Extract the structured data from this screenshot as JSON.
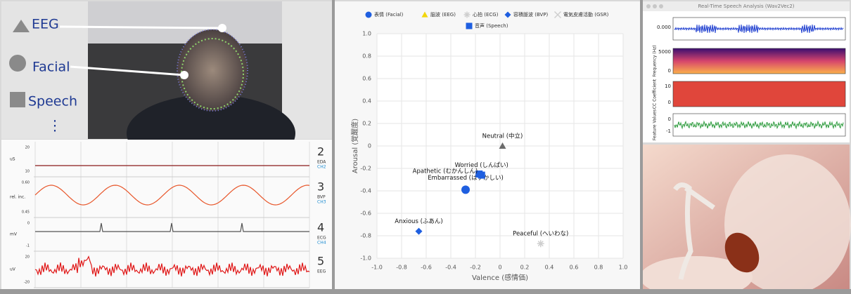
{
  "webcam": {
    "labels": [
      "EEG",
      "Facial",
      "Speech"
    ],
    "more": "⋮"
  },
  "physio": {
    "channels": [
      {
        "number": "2",
        "name": "EDA",
        "ch": "CH2",
        "unit": "uS",
        "ticks": [
          "20",
          "10"
        ]
      },
      {
        "number": "3",
        "name": "BVP",
        "ch": "CH3",
        "unit": "rel. inc.",
        "ticks": [
          "0.60",
          "0.45"
        ]
      },
      {
        "number": "4",
        "name": "ECG",
        "ch": "CH4",
        "unit": "mV",
        "ticks": [
          "0",
          "-1"
        ]
      },
      {
        "number": "5",
        "name": "EEG",
        "ch": "",
        "unit": "uV",
        "ticks": [
          "20",
          "-20"
        ]
      }
    ]
  },
  "speech_window": {
    "title": "Real-Time Speech Analysis (Wav2Vec2)",
    "axis_labels": [
      "Frequency (Hz)",
      "CC Coefficient",
      "Feature Values"
    ],
    "ticks": [
      "0.000",
      "5000",
      "0",
      "10",
      "0",
      "0",
      "-1"
    ]
  },
  "chart_data": {
    "type": "scatter",
    "xlabel": "Valence (感情価)",
    "ylabel": "Arousal (覚醒度)",
    "xlim": [
      -1,
      1
    ],
    "ylim": [
      -1,
      1
    ],
    "grid": true,
    "xticks": [
      {
        "value": -1,
        "label": "-1.0"
      },
      {
        "value": -0.8,
        "label": "-0.8"
      },
      {
        "value": -0.6,
        "label": "-0.6"
      },
      {
        "value": -0.4,
        "label": "-0.4"
      },
      {
        "value": -0.2,
        "label": "-0.2"
      },
      0,
      {
        "value": 0.2,
        "label": "0.2"
      },
      {
        "value": 0.4,
        "label": "0.4"
      },
      {
        "value": 0.6,
        "label": "0.6"
      },
      {
        "value": 0.8,
        "label": "0.8"
      },
      {
        "value": 1,
        "label": "1.0"
      }
    ],
    "yticks": [
      {
        "value": -1,
        "label": "-1.0"
      },
      {
        "value": -0.8,
        "label": "-0.8"
      },
      {
        "value": -0.6,
        "label": "-0.6"
      },
      {
        "value": -0.4,
        "label": "-0.4"
      },
      {
        "value": -0.2,
        "label": "-0.2"
      },
      0,
      {
        "value": 0.2,
        "label": "0.2"
      },
      {
        "value": 0.4,
        "label": "0.4"
      },
      {
        "value": 0.6,
        "label": "0.6"
      },
      {
        "value": 0.8,
        "label": "0.8"
      },
      {
        "value": 1,
        "label": "1.0"
      }
    ],
    "series": [
      {
        "name": "表情 (Facial)",
        "marker": "circle",
        "color": "#1f5fe0",
        "x": [
          -0.28
        ],
        "values": [
          -0.39
        ],
        "labels": [
          "Embarrassed (はずかしい)"
        ]
      },
      {
        "name": "脳波 (EEG)",
        "marker": "triangle",
        "color": "#f2d60c",
        "point_color": "#6b6b6b",
        "x": [
          0.02
        ],
        "values": [
          0.0
        ],
        "labels": [
          "Neutral (中立)"
        ]
      },
      {
        "name": "心拍 (ECG)",
        "marker": "star",
        "color": "#cfcfcf",
        "x": [
          0.33
        ],
        "values": [
          -0.87
        ],
        "labels": [
          "Peaceful (へいわな)"
        ]
      },
      {
        "name": "容積脈波 (BVP)",
        "marker": "diamond",
        "color": "#1f5fe0",
        "x": [
          -0.66
        ],
        "values": [
          -0.76
        ],
        "labels": [
          "Anxious (ふあん)"
        ]
      },
      {
        "name": "電気皮膚活動 (GSR)",
        "marker": "x",
        "color": "#cfcfcf",
        "x": [],
        "values": [],
        "labels": []
      },
      {
        "name": "音声 (Speech)",
        "marker": "square",
        "color": "#1f5fe0",
        "x": [
          -0.15,
          -0.17
        ],
        "values": [
          -0.26,
          -0.25
        ],
        "labels": [
          "Worried (しんぱい)",
          "Apathetic (むかんしん)"
        ]
      }
    ]
  }
}
